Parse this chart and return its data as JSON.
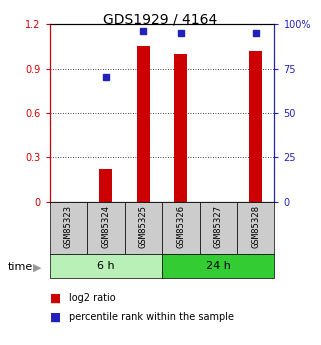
{
  "title": "GDS1929 / 4164",
  "samples": [
    "GSM85323",
    "GSM85324",
    "GSM85325",
    "GSM85326",
    "GSM85327",
    "GSM85328"
  ],
  "log2_ratio": [
    0.0,
    0.22,
    1.05,
    1.0,
    0.0,
    1.02
  ],
  "percentile_rank": [
    null,
    70.0,
    96.0,
    95.0,
    null,
    95.0
  ],
  "groups": [
    {
      "label": "6 h",
      "indices": [
        0,
        1,
        2
      ],
      "color": "#b8f0b8"
    },
    {
      "label": "24 h",
      "indices": [
        3,
        4,
        5
      ],
      "color": "#33cc33"
    }
  ],
  "time_label": "time",
  "bar_color": "#cc0000",
  "dot_color": "#2222bb",
  "left_axis_color": "#cc0000",
  "right_axis_color": "#2222bb",
  "ylim_left": [
    0,
    1.2
  ],
  "ylim_right": [
    0,
    100
  ],
  "yticks_left": [
    0,
    0.3,
    0.6,
    0.9,
    1.2
  ],
  "ytick_labels_left": [
    "0",
    "0.3",
    "0.6",
    "0.9",
    "1.2"
  ],
  "yticks_right": [
    0,
    25,
    50,
    75,
    100
  ],
  "ytick_labels_right": [
    "0",
    "25",
    "50",
    "75",
    "100%"
  ],
  "bar_width": 0.35,
  "legend_items": [
    {
      "label": "log2 ratio",
      "color": "#cc0000"
    },
    {
      "label": "percentile rank within the sample",
      "color": "#2222bb"
    }
  ],
  "sample_box_color": "#cccccc",
  "title_fontsize": 10,
  "tick_fontsize": 7,
  "label_fontsize": 6.5,
  "group_fontsize": 8,
  "legend_fontsize": 7,
  "time_fontsize": 8
}
